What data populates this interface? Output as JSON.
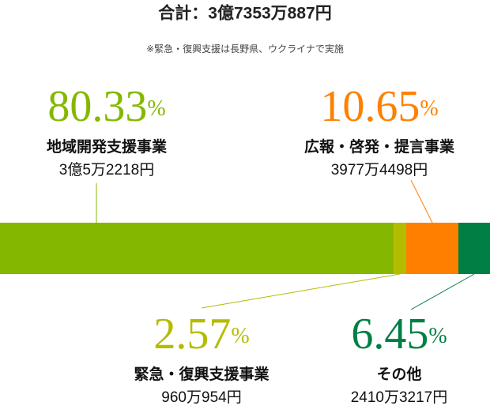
{
  "chart_data": {
    "type": "bar",
    "orientation": "horizontal",
    "stacked": true,
    "title": "合計：3億7353万887円",
    "note": "※緊急・復興支援は長野県、ウクライナで実施",
    "unit": "%",
    "xlim": [
      0,
      100
    ],
    "series": [
      {
        "name": "地域開発支援事業",
        "color": "#84b800",
        "values": [
          80.33
        ],
        "amount_label": "3億5万2218円"
      },
      {
        "name": "緊急・復興支援事業",
        "color": "#b4bc00",
        "values": [
          2.57
        ],
        "amount_label": "960万954円"
      },
      {
        "name": "広報・啓発・提言事業",
        "color": "#ff8000",
        "values": [
          10.65
        ],
        "amount_label": "3977万4498円"
      },
      {
        "name": "その他",
        "color": "#007f45",
        "values": [
          6.45
        ],
        "amount_label": "2410万3217円"
      }
    ]
  }
}
